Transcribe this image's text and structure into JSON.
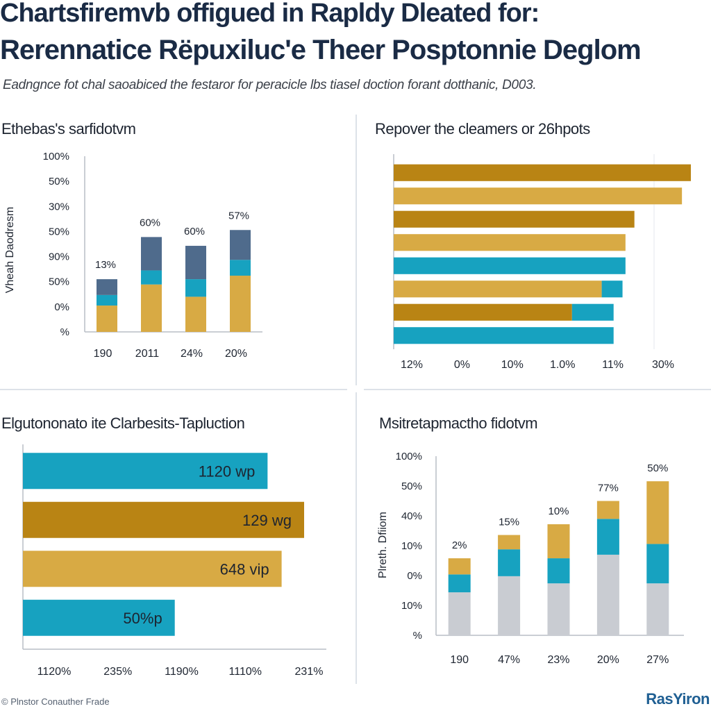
{
  "header": {
    "title_line1": "Chartsfiremvb offigued in Rapldy Dleated for:",
    "title_line2": "Rerennatice Rëpuxiluc'e Theer Posptonnie Deglom",
    "subtitle": "Eadngnce fot chal saoabiced the festaror for peracicle lbs tiasel doction forant dotthanic, D003."
  },
  "footer": {
    "note": "© Plnstor Conauther Frade",
    "brand": "RasYiron"
  },
  "colors": {
    "blue": "#4f6b8c",
    "teal": "#17a2c0",
    "gold": "#d8aa44",
    "dark_gold": "#b98414",
    "grey": "#c9ccd2",
    "axis": "#b8bec6"
  },
  "chart_data": [
    {
      "type": "bar",
      "stacked": true,
      "title": "Ethebas's sarfidotvm",
      "ylabel": "Vheah Daodresm",
      "xlabel": "",
      "y_tick_labels": [
        "100%",
        "50%",
        "30%",
        "50%",
        "90%",
        "50%",
        "0%",
        "%"
      ],
      "ylim": [
        0,
        100
      ],
      "categories": [
        "190",
        "2011",
        "24%",
        "20%"
      ],
      "data_labels": [
        "13%",
        "60%",
        "60%",
        "57%"
      ],
      "series": [
        {
          "name": "gold",
          "values": [
            15,
            27,
            20,
            32
          ]
        },
        {
          "name": "teal",
          "values": [
            6,
            8,
            10,
            9
          ]
        },
        {
          "name": "blue",
          "values": [
            9,
            19,
            19,
            17
          ]
        }
      ]
    },
    {
      "type": "bar",
      "orientation": "horizontal",
      "title": "Repover the cleamers or 26hpots",
      "x_tick_labels": [
        "12%",
        "0%",
        "10%",
        "1.0%",
        "11%",
        "30%"
      ],
      "xlim": [
        0,
        100
      ],
      "series": [
        {
          "name": "dark_gold",
          "values": [
            100,
            81,
            0,
            60
          ]
        },
        {
          "name": "gold",
          "values": [
            97,
            78,
            70,
            0
          ]
        },
        {
          "name": "teal",
          "values": [
            0,
            0,
            78,
            14
          ]
        },
        {
          "name": "teal_second",
          "values": [
            0,
            0,
            7,
            74
          ]
        }
      ],
      "rows": [
        [
          {
            "color": "dark_gold",
            "value": 100
          }
        ],
        [
          {
            "color": "gold",
            "value": 97
          }
        ],
        [
          {
            "color": "dark_gold",
            "value": 81
          }
        ],
        [
          {
            "color": "gold",
            "value": 78
          }
        ],
        [
          {
            "color": "teal",
            "value": 78
          }
        ],
        [
          {
            "color": "gold",
            "value": 70
          },
          {
            "color": "teal",
            "value": 7
          }
        ],
        [
          {
            "color": "dark_gold",
            "value": 60
          },
          {
            "color": "teal",
            "value": 14
          }
        ],
        [
          {
            "color": "teal",
            "value": 74
          }
        ]
      ]
    },
    {
      "type": "bar",
      "orientation": "horizontal",
      "title": "Elgutononato ite Clarbesits-Tapluction",
      "x_tick_labels": [
        "1120%",
        "235%",
        "1190%",
        "1110%",
        "231%"
      ],
      "xlim": [
        0,
        100
      ],
      "bars": [
        {
          "label": "1120 wp",
          "value": 87,
          "color": "teal"
        },
        {
          "label": "129 wg",
          "value": 100,
          "color": "dark_gold"
        },
        {
          "label": "648 vip",
          "value": 92,
          "color": "gold"
        },
        {
          "label": "50%p",
          "value": 54,
          "color": "teal"
        }
      ]
    },
    {
      "type": "bar",
      "stacked": true,
      "title": "Msitretapmactho fidotvm",
      "ylabel": "Plreth. Dfiiom",
      "y_tick_labels": [
        "100%",
        "50%",
        "40%",
        "10%",
        "0%",
        "10%",
        "%"
      ],
      "ylim": [
        0,
        100
      ],
      "categories": [
        "190",
        "47%",
        "23%",
        "20%",
        "27%"
      ],
      "data_labels": [
        "2%",
        "15%",
        "10%",
        "77%",
        "50%"
      ],
      "series": [
        {
          "name": "grey",
          "values": [
            24,
            33,
            29,
            45,
            29
          ]
        },
        {
          "name": "teal",
          "values": [
            10,
            15,
            14,
            20,
            22
          ]
        },
        {
          "name": "gold",
          "values": [
            9,
            8,
            19,
            10,
            35
          ]
        }
      ]
    }
  ]
}
